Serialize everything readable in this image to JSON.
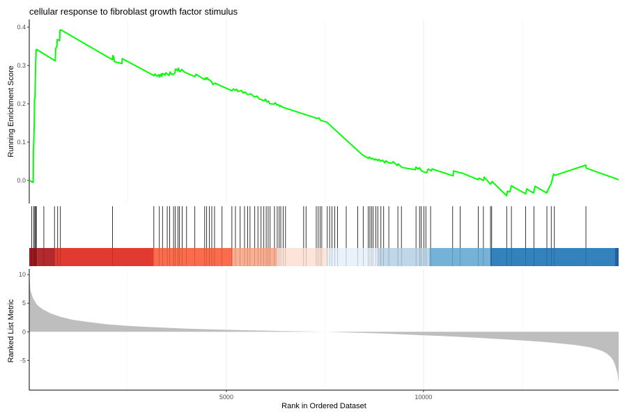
{
  "chart_data": {
    "type": "line",
    "title": "cellular response to fibroblast growth factor stimulus",
    "xlabel": "Rank in Ordered Dataset",
    "x_ticks": [
      5000,
      10000
    ],
    "xlim": [
      0,
      14950
    ],
    "grid": "vertical",
    "panels": {
      "enrichment": {
        "ylabel": "Running Enrichment Score",
        "ylim": [
          -0.06,
          0.42
        ],
        "y_ticks": [
          0.0,
          0.1,
          0.2,
          0.3,
          0.4
        ],
        "y_tick_labels": [
          "0.0",
          "0.1",
          "0.2",
          "0.3",
          "0.4"
        ],
        "line_color": "#00ff00",
        "series": [
          {
            "x": [
              0,
              100,
              105,
              125,
              135,
              145,
              160,
              175,
              185,
              660,
              670,
              700,
              710,
              770,
              780,
              800,
              2110,
              2120,
              2140,
              2160,
              2350,
              2360,
              3170,
              3190,
              3240,
              3290,
              3300,
              3350,
              3360,
              3380,
              3450,
              3460,
              3550,
              3570,
              3620,
              3690,
              3710,
              3770,
              3780,
              3820,
              3840,
              3870,
              3930,
              4200,
              4230,
              4450,
              4470,
              4490,
              4520,
              4540,
              4580,
              4620,
              4660,
              4710,
              5140,
              5180,
              5220,
              5260,
              5290,
              5380,
              5430,
              5470,
              5540,
              5620,
              5710,
              5780,
              5830,
              5960,
              5990,
              6030,
              6070,
              6100,
              6210,
              6240,
              6280,
              6320,
              6350,
              6380,
              6430,
              6460,
              7300,
              7350,
              7390,
              7550,
              7600,
              8470,
              8480,
              8600,
              8620,
              8680,
              8710,
              8760,
              8790,
              8840,
              8870,
              8910,
              8960,
              9020,
              9050,
              9110,
              9200,
              9230,
              9340,
              9360,
              9450,
              9790,
              9810,
              9860,
              9900,
              9950,
              10010,
              10080,
              10110,
              10120,
              10200,
              10220,
              10750,
              10760,
              10930,
              10960,
              11390,
              11410,
              11520,
              11540,
              11700,
              11740,
              12110,
              12130,
              12190,
              12230,
              12590,
              12620,
              12790,
              12830,
              13130,
              13140,
              13230,
              13240,
              13300,
              13330,
              14120,
              14130,
              14950
            ],
            "y": [
              0.0,
              -0.005,
              0.07,
              0.14,
              0.21,
              0.215,
              0.3,
              0.34,
              0.342,
              0.312,
              0.345,
              0.348,
              0.368,
              0.365,
              0.392,
              0.393,
              0.315,
              0.326,
              0.324,
              0.31,
              0.305,
              0.318,
              0.273,
              0.278,
              0.272,
              0.276,
              0.27,
              0.278,
              0.271,
              0.279,
              0.275,
              0.281,
              0.274,
              0.283,
              0.276,
              0.279,
              0.291,
              0.286,
              0.293,
              0.284,
              0.286,
              0.29,
              0.283,
              0.271,
              0.277,
              0.263,
              0.268,
              0.264,
              0.268,
              0.263,
              0.262,
              0.258,
              0.25,
              0.254,
              0.234,
              0.239,
              0.235,
              0.238,
              0.232,
              0.235,
              0.228,
              0.231,
              0.224,
              0.226,
              0.218,
              0.22,
              0.213,
              0.208,
              0.212,
              0.205,
              0.207,
              0.2,
              0.199,
              0.203,
              0.197,
              0.198,
              0.193,
              0.195,
              0.191,
              0.19,
              0.162,
              0.163,
              0.157,
              0.152,
              0.147,
              0.065,
              0.065,
              0.058,
              0.061,
              0.056,
              0.058,
              0.053,
              0.056,
              0.052,
              0.055,
              0.05,
              0.053,
              0.046,
              0.051,
              0.046,
              0.045,
              0.049,
              0.039,
              0.043,
              0.034,
              0.028,
              0.035,
              0.03,
              0.033,
              0.025,
              0.022,
              0.02,
              0.028,
              0.03,
              0.025,
              0.03,
              0.012,
              0.025,
              0.02,
              0.02,
              0.002,
              0.006,
              0.0,
              0.009,
              -0.01,
              -0.003,
              -0.04,
              -0.028,
              -0.03,
              -0.014,
              -0.035,
              -0.022,
              -0.033,
              -0.015,
              -0.033,
              -0.028,
              -0.01,
              -0.009,
              0.017,
              0.013,
              0.04,
              0.032,
              0.002
            ]
          }
        ]
      },
      "hits": {
        "positions": [
          60,
          110,
          140,
          160,
          180,
          370,
          640,
          720,
          790,
          2110,
          3160,
          3300,
          3380,
          3500,
          3560,
          3660,
          3700,
          3770,
          3810,
          3880,
          3990,
          4200,
          4450,
          4500,
          4570,
          4630,
          4700,
          4890,
          5140,
          5230,
          5350,
          5460,
          5540,
          5600,
          5720,
          5800,
          5880,
          5950,
          6010,
          6060,
          6110,
          6220,
          6290,
          6340,
          6380,
          6440,
          6500,
          6960,
          7020,
          7280,
          7330,
          7380,
          7420,
          7560,
          7620,
          7680,
          7750,
          7820,
          8040,
          8330,
          8470,
          8600,
          8640,
          8680,
          8720,
          8790,
          8840,
          8920,
          8990,
          9120,
          9350,
          9440,
          9810,
          9900,
          9940,
          10010,
          10060,
          10180,
          10740,
          10930,
          11390,
          11520,
          11700,
          11730,
          12110,
          12230,
          12590,
          12800,
          13130,
          13240,
          13320,
          14120
        ]
      },
      "color_bar": {
        "segments": [
          {
            "from": 0,
            "to": 200,
            "color": "#9e1a21"
          },
          {
            "from": 200,
            "to": 650,
            "color": "#b2292e"
          },
          {
            "from": 650,
            "to": 3150,
            "color": "#e03a31"
          },
          {
            "from": 3150,
            "to": 5150,
            "color": "#fb6b4c"
          },
          {
            "from": 5150,
            "to": 6280,
            "color": "#fcae92"
          },
          {
            "from": 6280,
            "to": 7550,
            "color": "#fde3d8"
          },
          {
            "from": 7550,
            "to": 8850,
            "color": "#e9f1fb"
          },
          {
            "from": 8850,
            "to": 10150,
            "color": "#bfd7e8"
          },
          {
            "from": 10150,
            "to": 11700,
            "color": "#74b2d8"
          },
          {
            "from": 11700,
            "to": 14850,
            "color": "#3382be"
          },
          {
            "from": 14850,
            "to": 14950,
            "color": "#205fa4"
          }
        ]
      },
      "ranked": {
        "ylabel": "Ranked List Metric",
        "ylim": [
          -10.2,
          11.0
        ],
        "y_ticks": [
          -5,
          0,
          5,
          10
        ],
        "y_tick_labels": [
          "-5",
          "0",
          "5",
          "10"
        ],
        "fill_color": "#bebebe",
        "series": [
          {
            "x": [
              0,
              30,
              100,
              200,
              350,
              550,
              800,
              1100,
              1500,
              2000,
              2500,
              3000,
              3500,
              4000,
              4500,
              5000,
              5500,
              6000,
              6500,
              7000,
              7400,
              7600,
              8000,
              8500,
              9000,
              9500,
              10000,
              10500,
              11000,
              11500,
              12000,
              12500,
              13000,
              13500,
              13900,
              14200,
              14400,
              14550,
              14650,
              14750,
              14820,
              14870,
              14920,
              14950
            ],
            "y": [
              10.2,
              7.2,
              5.8,
              4.7,
              3.9,
              3.2,
              2.6,
              2.1,
              1.7,
              1.3,
              1.05,
              0.85,
              0.7,
              0.55,
              0.45,
              0.35,
              0.27,
              0.2,
              0.13,
              0.07,
              0.02,
              -0.02,
              -0.1,
              -0.2,
              -0.3,
              -0.45,
              -0.6,
              -0.75,
              -0.9,
              -1.1,
              -1.3,
              -1.5,
              -1.75,
              -2.05,
              -2.35,
              -2.7,
              -3.05,
              -3.4,
              -3.8,
              -4.4,
              -5.1,
              -6.0,
              -7.3,
              -8.8
            ]
          }
        ]
      }
    }
  }
}
